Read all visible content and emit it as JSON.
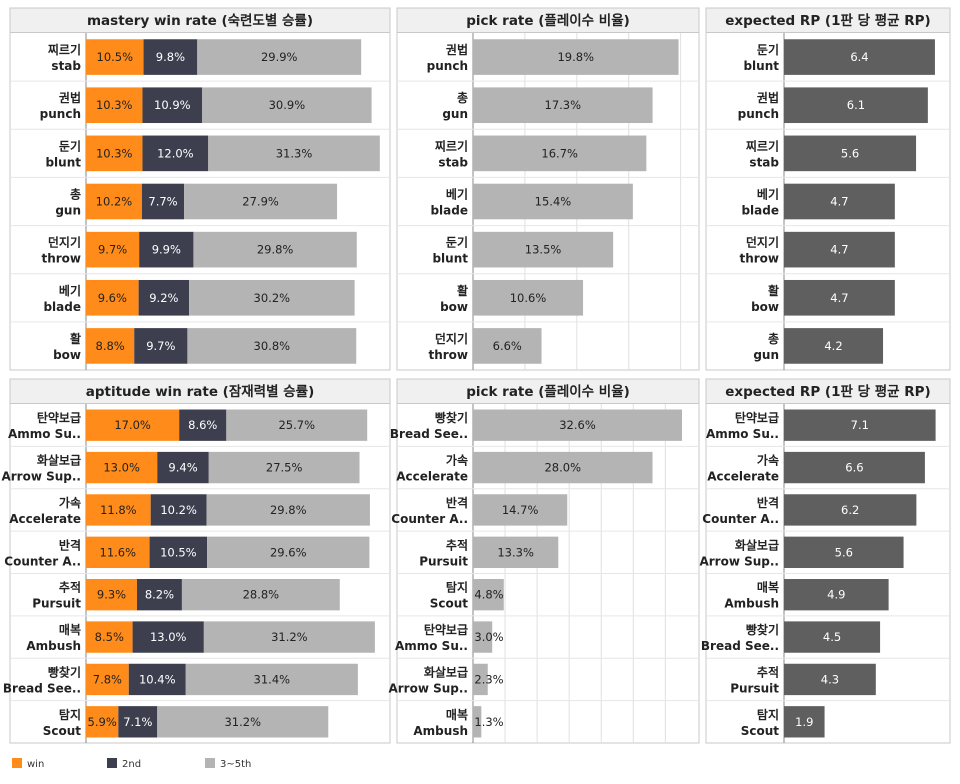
{
  "colors": {
    "win": "#ff8c1a",
    "second": "#3d3f4f",
    "rest": "#b4b4b4",
    "pick": "#b4b4b4",
    "rp": "#5f5f5f",
    "grid": "#e0e0e0",
    "border": "#c8c8c8",
    "header_bg": "#f0f0f0"
  },
  "legend": {
    "items": [
      {
        "label": "win",
        "color": "#ff8c1a"
      },
      {
        "label": "2nd",
        "color": "#3d3f4f"
      },
      {
        "label": "3~5th",
        "color": "#b4b4b4"
      }
    ]
  },
  "chart_data": [
    {
      "type": "bar",
      "stacked": true,
      "orientation": "horizontal",
      "title": "mastery win rate (숙련도별 승률)",
      "categories": [
        [
          "찌르기",
          "stab"
        ],
        [
          "권법",
          "punch"
        ],
        [
          "둔기",
          "blunt"
        ],
        [
          "총",
          "gun"
        ],
        [
          "던지기",
          "throw"
        ],
        [
          "베기",
          "blade"
        ],
        [
          "활",
          "bow"
        ]
      ],
      "series": [
        {
          "name": "win",
          "values": [
            10.5,
            10.3,
            10.3,
            10.2,
            9.7,
            9.6,
            8.8
          ]
        },
        {
          "name": "2nd",
          "values": [
            9.8,
            10.9,
            12.0,
            7.7,
            9.9,
            9.2,
            9.7
          ]
        },
        {
          "name": "3~5th",
          "values": [
            29.9,
            30.9,
            31.3,
            27.9,
            29.8,
            30.2,
            30.8
          ]
        }
      ],
      "value_format": "%",
      "xlim": [
        0,
        54
      ]
    },
    {
      "type": "bar",
      "orientation": "horizontal",
      "title": "pick rate (플레이수 비율)",
      "categories": [
        [
          "권법",
          "punch"
        ],
        [
          "총",
          "gun"
        ],
        [
          "찌르기",
          "stab"
        ],
        [
          "베기",
          "blade"
        ],
        [
          "둔기",
          "blunt"
        ],
        [
          "활",
          "bow"
        ],
        [
          "던지기",
          "throw"
        ]
      ],
      "values": [
        19.8,
        17.3,
        16.7,
        15.4,
        13.5,
        10.6,
        6.6
      ],
      "value_format": "%",
      "xlim": [
        0,
        21
      ],
      "grid": true
    },
    {
      "type": "bar",
      "orientation": "horizontal",
      "title": "expected RP (1판 당 평균 RP)",
      "categories": [
        [
          "둔기",
          "blunt"
        ],
        [
          "권법",
          "punch"
        ],
        [
          "찌르기",
          "stab"
        ],
        [
          "베기",
          "blade"
        ],
        [
          "던지기",
          "throw"
        ],
        [
          "활",
          "bow"
        ],
        [
          "총",
          "gun"
        ]
      ],
      "values": [
        6.4,
        6.1,
        5.6,
        4.7,
        4.7,
        4.7,
        4.2
      ],
      "value_format": "",
      "xlim": [
        0,
        6.7
      ]
    },
    {
      "type": "bar",
      "stacked": true,
      "orientation": "horizontal",
      "title": "aptitude win rate (잠재력별 승률)",
      "categories": [
        [
          "탄약보급",
          "Ammo Su.."
        ],
        [
          "화살보급",
          "Arrow Sup.."
        ],
        [
          "가속",
          "Accelerate"
        ],
        [
          "반격",
          "Counter A.."
        ],
        [
          "추적",
          "Pursuit"
        ],
        [
          "매복",
          "Ambush"
        ],
        [
          "빵찾기",
          "Bread See.."
        ],
        [
          "탐지",
          "Scout"
        ]
      ],
      "series": [
        {
          "name": "win",
          "values": [
            17.0,
            13.0,
            11.8,
            11.6,
            9.3,
            8.5,
            7.8,
            5.9
          ]
        },
        {
          "name": "2nd",
          "values": [
            8.6,
            9.4,
            10.2,
            10.5,
            8.2,
            13.0,
            10.4,
            7.1
          ]
        },
        {
          "name": "3~5th",
          "values": [
            25.7,
            27.5,
            29.8,
            29.6,
            28.8,
            31.2,
            31.4,
            31.2
          ]
        }
      ],
      "value_format": "%",
      "xlim": [
        0,
        54
      ]
    },
    {
      "type": "bar",
      "orientation": "horizontal",
      "title": "pick rate (플레이수 비율)",
      "categories": [
        [
          "빵찾기",
          "Bread See.."
        ],
        [
          "가속",
          "Accelerate"
        ],
        [
          "반격",
          "Counter A.."
        ],
        [
          "추적",
          "Pursuit"
        ],
        [
          "탐지",
          "Scout"
        ],
        [
          "탄약보급",
          "Ammo Su.."
        ],
        [
          "화살보급",
          "Arrow Sup.."
        ],
        [
          "매복",
          "Ambush"
        ]
      ],
      "values": [
        32.6,
        28.0,
        14.7,
        13.3,
        4.8,
        3.0,
        2.3,
        1.3
      ],
      "value_format": "%",
      "xlim": [
        0,
        34
      ],
      "grid": true
    },
    {
      "type": "bar",
      "orientation": "horizontal",
      "title": "expected RP (1판 당 평균 RP)",
      "categories": [
        [
          "탄약보급",
          "Ammo Su.."
        ],
        [
          "가속",
          "Accelerate"
        ],
        [
          "반격",
          "Counter A.."
        ],
        [
          "화살보급",
          "Arrow Sup.."
        ],
        [
          "매복",
          "Ambush"
        ],
        [
          "빵찾기",
          "Bread See.."
        ],
        [
          "추적",
          "Pursuit"
        ],
        [
          "탐지",
          "Scout"
        ]
      ],
      "values": [
        7.1,
        6.6,
        6.2,
        5.6,
        4.9,
        4.5,
        4.3,
        1.9
      ],
      "value_format": "",
      "xlim": [
        0,
        7.4
      ]
    }
  ]
}
